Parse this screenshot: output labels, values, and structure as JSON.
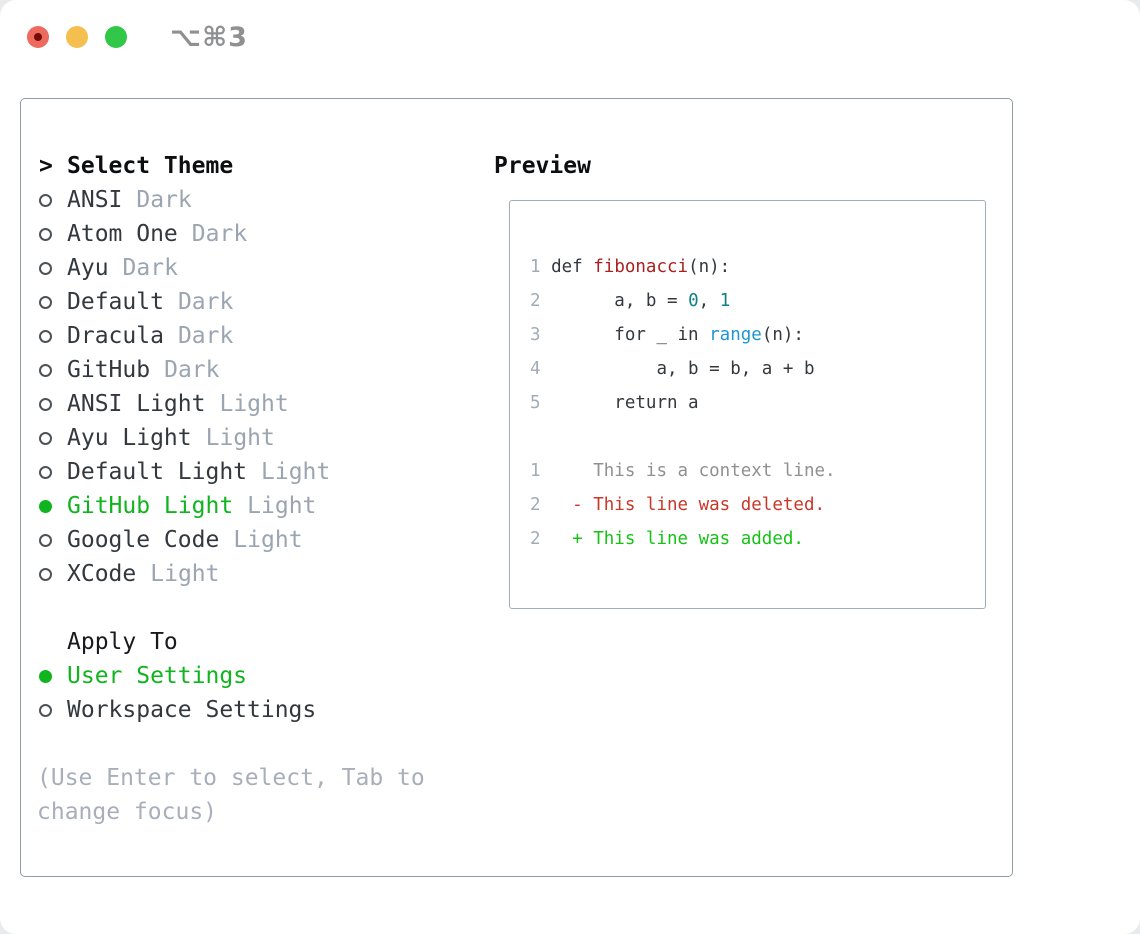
{
  "window": {
    "title": "⌥⌘3"
  },
  "theme_selector": {
    "header": {
      "prefix": ">",
      "label": "Select Theme"
    },
    "items": [
      {
        "name": "ANSI",
        "variant": "Dark",
        "selected": false
      },
      {
        "name": "Atom One",
        "variant": "Dark",
        "selected": false
      },
      {
        "name": "Ayu",
        "variant": "Dark",
        "selected": false
      },
      {
        "name": "Default",
        "variant": "Dark",
        "selected": false
      },
      {
        "name": "Dracula",
        "variant": "Dark",
        "selected": false
      },
      {
        "name": "GitHub",
        "variant": "Dark",
        "selected": false
      },
      {
        "name": "ANSI Light",
        "variant": "Light",
        "selected": false
      },
      {
        "name": "Ayu Light",
        "variant": "Light",
        "selected": false
      },
      {
        "name": "Default Light",
        "variant": "Light",
        "selected": false
      },
      {
        "name": "GitHub Light",
        "variant": "Light",
        "selected": true
      },
      {
        "name": "Google Code",
        "variant": "Light",
        "selected": false
      },
      {
        "name": "XCode",
        "variant": "Light",
        "selected": false
      }
    ],
    "apply_to": {
      "label": "Apply To",
      "options": [
        {
          "name": "User Settings",
          "selected": true
        },
        {
          "name": "Workspace Settings",
          "selected": false
        }
      ]
    },
    "hint": "(Use Enter to select, Tab to change focus)"
  },
  "preview": {
    "title": "Preview",
    "lines": [
      {
        "num": "1",
        "segs": [
          {
            "t": "def ",
            "k": "d"
          },
          {
            "t": "fibonacci",
            "k": "fn"
          },
          {
            "t": "(n):",
            "k": "d"
          }
        ]
      },
      {
        "num": "2",
        "segs": [
          {
            "t": "      a, b = ",
            "k": "d"
          },
          {
            "t": "0",
            "k": "num"
          },
          {
            "t": ", ",
            "k": "d"
          },
          {
            "t": "1",
            "k": "num"
          }
        ]
      },
      {
        "num": "3",
        "segs": [
          {
            "t": "      for _ in ",
            "k": "d"
          },
          {
            "t": "range",
            "k": "bi"
          },
          {
            "t": "(n):",
            "k": "d"
          }
        ]
      },
      {
        "num": "4",
        "segs": [
          {
            "t": "          a, b = b, a + b",
            "k": "d"
          }
        ]
      },
      {
        "num": "5",
        "segs": [
          {
            "t": "      return a",
            "k": "d"
          }
        ]
      },
      {
        "num": "",
        "segs": []
      },
      {
        "num": "1",
        "segs": [
          {
            "t": "    This is a context line.",
            "k": "ctx"
          }
        ]
      },
      {
        "num": "2",
        "segs": [
          {
            "t": "  - This line was deleted.",
            "k": "del"
          }
        ]
      },
      {
        "num": "2",
        "segs": [
          {
            "t": "  + This line was added.",
            "k": "add"
          }
        ]
      }
    ]
  },
  "colors": {
    "selected_green": "#10b41e",
    "diff_added_green": "#16c216",
    "diff_deleted_red": "#c93728",
    "diff_context_gray": "#8f9091",
    "function_red": "#ab1f1d",
    "number_teal": "#0e7f87",
    "builtin_blue": "#1e96d1",
    "line_number_gray": "#a2abb8",
    "variant_gray": "#9ba5b1",
    "hint_gray": "#a8afba",
    "text_dark": "#33383e",
    "panel_border": "#949ca4",
    "preview_border": "#a3adb7",
    "traffic_red": "#ee6a5f",
    "traffic_yellow": "#f5bf4f",
    "traffic_green": "#31c748"
  }
}
